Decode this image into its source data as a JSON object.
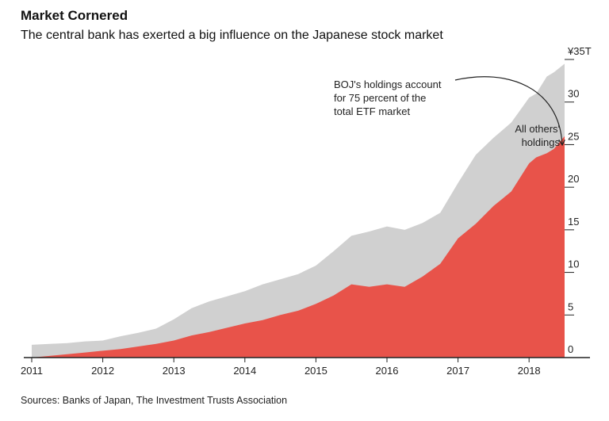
{
  "header": {
    "title": "Market Cornered",
    "subtitle": "The central bank has exerted a big influence on the Japanese stock market"
  },
  "footer": {
    "source": "Sources: Banks of Japan, The Investment Trusts Association"
  },
  "colors": {
    "boj": "#e8534a",
    "others": "#d0d0d0",
    "axis": "#222222"
  },
  "annotations": {
    "boj_lines": [
      "BOJ's holdings account",
      "for 75 percent of the",
      "total ETF market"
    ],
    "others_lines": [
      "All others'",
      "holdings"
    ]
  },
  "chart_data": {
    "type": "area",
    "stacked": false,
    "xlim": [
      2011.0,
      2018.5
    ],
    "ylim": [
      0,
      35
    ],
    "x_ticks": [
      2011,
      2012,
      2013,
      2014,
      2015,
      2016,
      2017,
      2018
    ],
    "y_ticks": [
      0,
      5,
      10,
      15,
      20,
      25,
      30,
      35
    ],
    "y_tick_labels": [
      "0",
      "5",
      "10",
      "15",
      "20",
      "25",
      "30",
      "¥35T"
    ],
    "y_axis_side": "right",
    "grid": false,
    "series": [
      {
        "name": "All others' holdings",
        "note": "values are total ETF market",
        "x": [
          2011.0,
          2011.25,
          2011.5,
          2011.75,
          2012.0,
          2012.25,
          2012.5,
          2012.75,
          2013.0,
          2013.25,
          2013.5,
          2013.75,
          2014.0,
          2014.25,
          2014.5,
          2014.75,
          2015.0,
          2015.25,
          2015.5,
          2015.75,
          2016.0,
          2016.25,
          2016.5,
          2016.75,
          2017.0,
          2017.25,
          2017.5,
          2017.75,
          2018.0,
          2018.1,
          2018.25,
          2018.35,
          2018.5
        ],
        "values": [
          1.5,
          1.6,
          1.7,
          1.9,
          2.0,
          2.5,
          2.9,
          3.4,
          4.5,
          5.8,
          6.6,
          7.2,
          7.8,
          8.6,
          9.2,
          9.8,
          10.8,
          12.5,
          14.3,
          14.8,
          15.4,
          15.0,
          15.8,
          17.0,
          20.5,
          23.8,
          25.8,
          27.6,
          30.5,
          31.0,
          33.0,
          33.5,
          34.5
        ]
      },
      {
        "name": "BOJ's holdings",
        "x": [
          2011.0,
          2011.25,
          2011.5,
          2011.75,
          2012.0,
          2012.25,
          2012.5,
          2012.75,
          2013.0,
          2013.25,
          2013.5,
          2013.75,
          2014.0,
          2014.25,
          2014.5,
          2014.75,
          2015.0,
          2015.25,
          2015.5,
          2015.75,
          2016.0,
          2016.25,
          2016.5,
          2016.75,
          2017.0,
          2017.25,
          2017.5,
          2017.75,
          2018.0,
          2018.1,
          2018.25,
          2018.35,
          2018.5
        ],
        "values": [
          0.0,
          0.2,
          0.4,
          0.6,
          0.8,
          1.0,
          1.3,
          1.6,
          2.0,
          2.6,
          3.0,
          3.5,
          4.0,
          4.4,
          5.0,
          5.5,
          6.3,
          7.3,
          8.6,
          8.3,
          8.6,
          8.3,
          9.5,
          11.0,
          14.0,
          15.7,
          17.8,
          19.5,
          22.8,
          23.5,
          24.0,
          24.5,
          26.0
        ]
      }
    ]
  }
}
